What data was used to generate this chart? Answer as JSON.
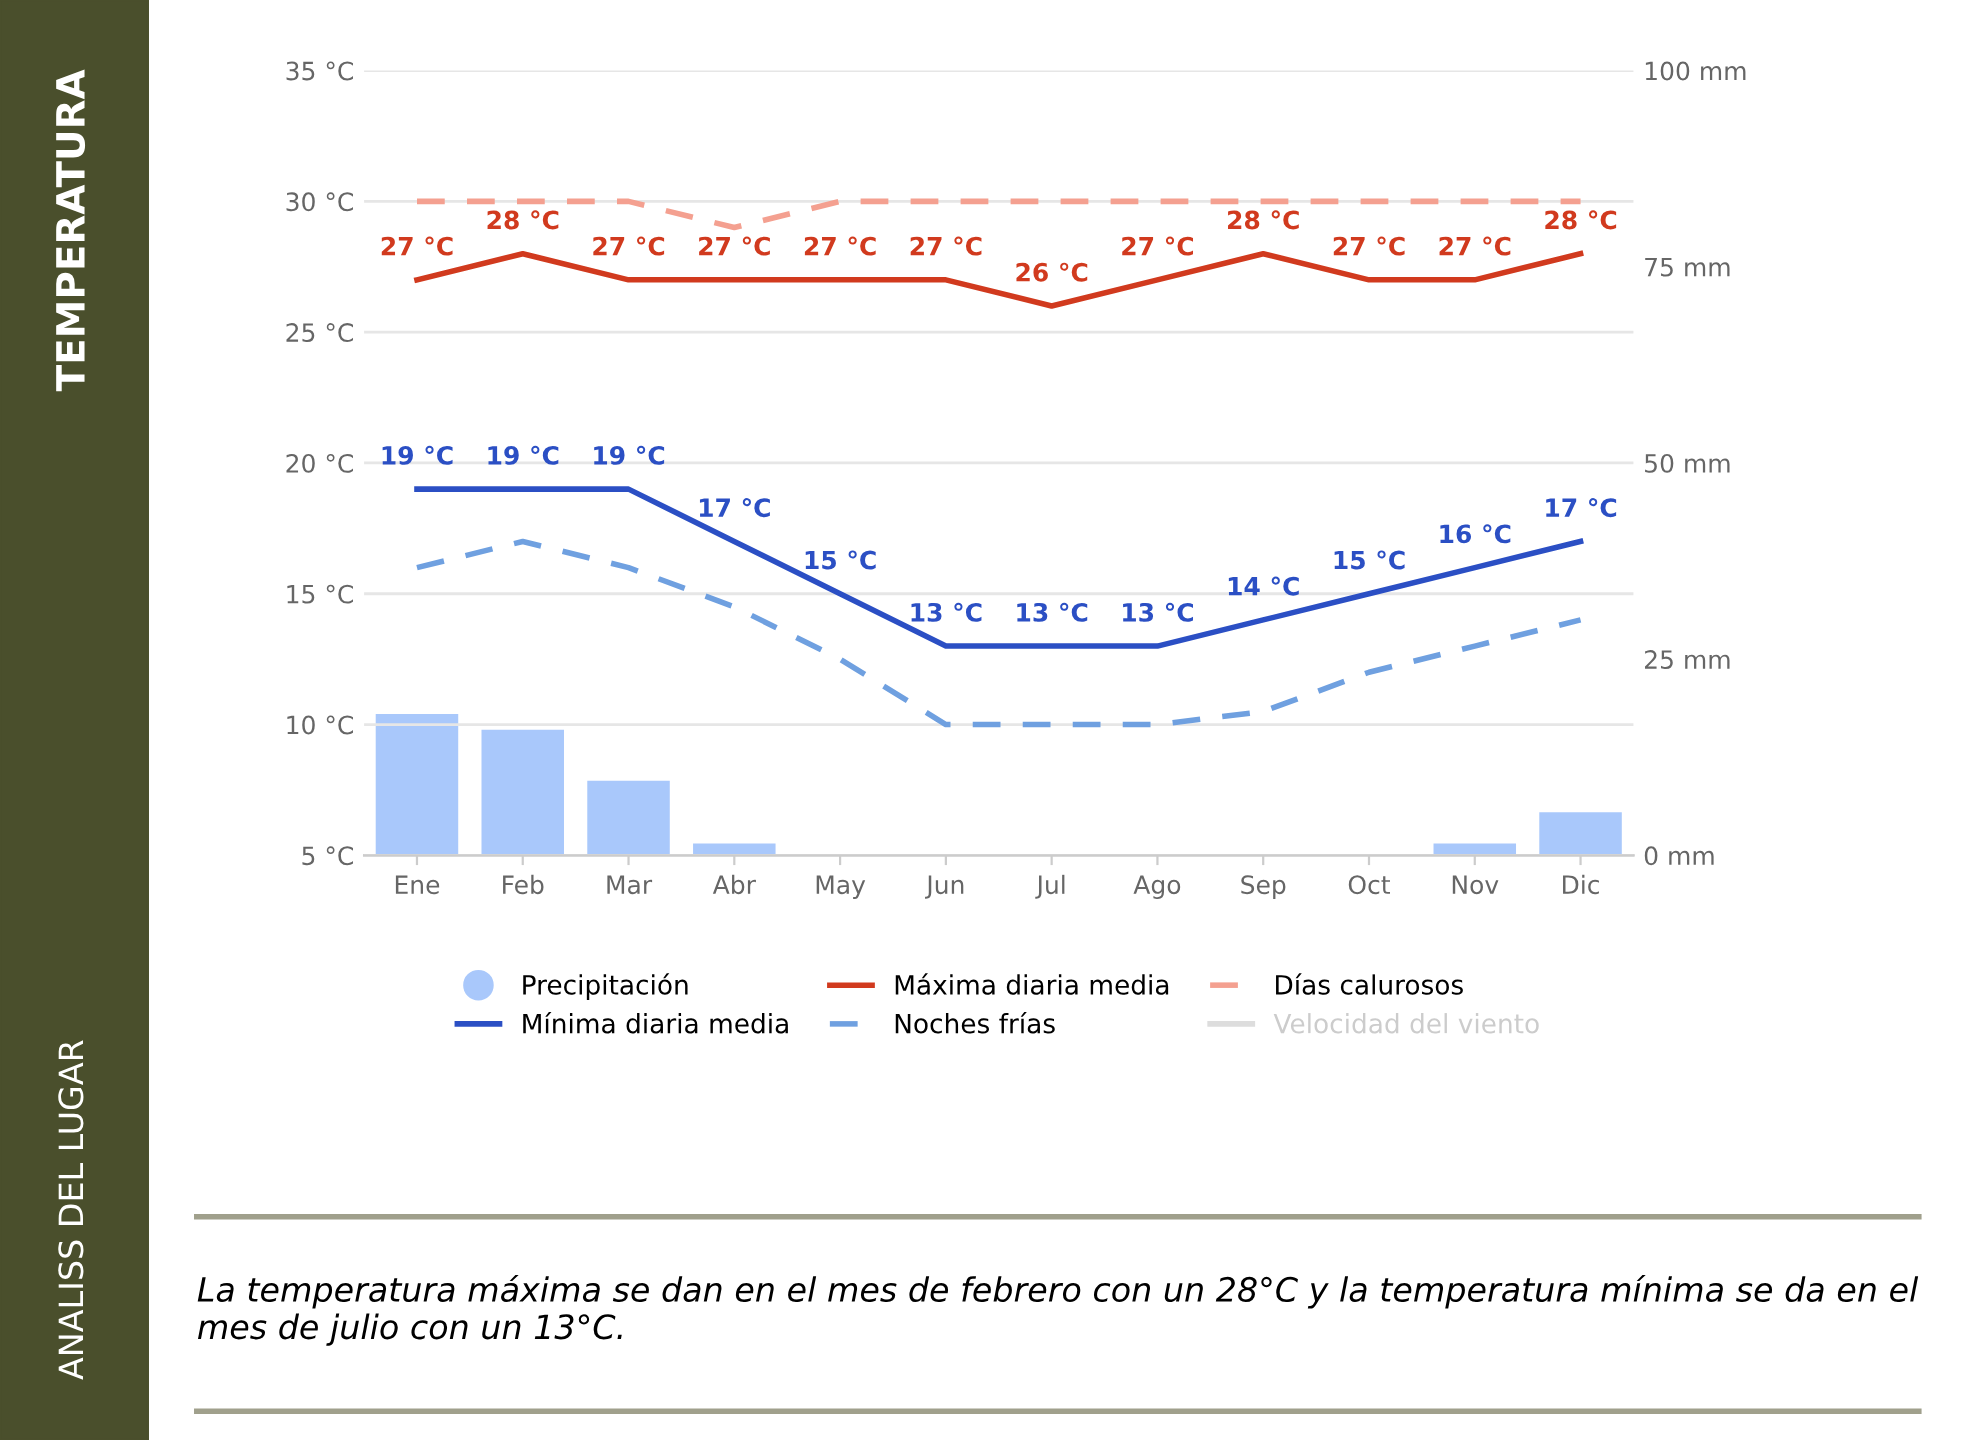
{
  "chart_data": {
    "type": "line",
    "categories": [
      "Ene",
      "Feb",
      "Mar",
      "Abr",
      "May",
      "Jun",
      "Jul",
      "Ago",
      "Sep",
      "Oct",
      "Nov",
      "Dic"
    ],
    "series": [
      {
        "name": "Precipitación",
        "type": "bar",
        "axis": "y2",
        "color": "#a9c8fb",
        "values": [
          18,
          16,
          9.5,
          1.5,
          0,
          0,
          0,
          0,
          0,
          0,
          1.5,
          5.5
        ]
      },
      {
        "name": "Máxima diaria media",
        "color": "#d13a1e",
        "line_style": "solid",
        "values": [
          27,
          28,
          27,
          27,
          27,
          27,
          26,
          27,
          28,
          27,
          27,
          28
        ],
        "value_labels": [
          "27 °C",
          "28 °C",
          "27 °C",
          "27 °C",
          "27 °C",
          "27 °C",
          "26 °C",
          "27 °C",
          "28 °C",
          "27 °C",
          "27 °C",
          "28 °C"
        ]
      },
      {
        "name": "Días calurosos",
        "color": "#f4a090",
        "line_style": "dashed",
        "values": [
          30,
          30,
          30,
          29,
          30,
          30,
          30,
          30,
          30,
          30,
          30,
          30
        ]
      },
      {
        "name": "Mínima diaria media",
        "color": "#2b4fc4",
        "line_style": "solid",
        "values": [
          19,
          19,
          19,
          17,
          15,
          13,
          13,
          13,
          14,
          15,
          16,
          17
        ],
        "value_labels": [
          "19 °C",
          "19 °C",
          "19 °C",
          "17 °C",
          "15 °C",
          "13 °C",
          "13 °C",
          "13 °C",
          "14 °C",
          "15 °C",
          "16 °C",
          "17 °C"
        ]
      },
      {
        "name": "Noches frías",
        "color": "#6fa0e0",
        "line_style": "dashed",
        "values": [
          16,
          17,
          16,
          14.5,
          12.5,
          10,
          10,
          10,
          10.5,
          12,
          13,
          14
        ]
      },
      {
        "name": "Velocidad del viento",
        "color": "#dddddd",
        "line_style": "solid",
        "values": [
          null,
          null,
          null,
          null,
          null,
          null,
          null,
          null,
          null,
          null,
          null,
          null
        ]
      }
    ],
    "ylim": [
      5,
      35
    ],
    "yticks": [
      {
        "value": 5,
        "label": "5 °C"
      },
      {
        "value": 10,
        "label": "10 °C"
      },
      {
        "value": 15,
        "label": "15 °C"
      },
      {
        "value": 20,
        "label": "20 °C"
      },
      {
        "value": 25,
        "label": "25 °C"
      },
      {
        "value": 30,
        "label": "30 °C"
      },
      {
        "value": 35,
        "label": "35 °C"
      }
    ],
    "y2lim": [
      0,
      100
    ],
    "y2ticks": [
      {
        "value": 0,
        "label": "0 mm"
      },
      {
        "value": 25,
        "label": "25 mm"
      },
      {
        "value": 50,
        "label": "50 mm"
      },
      {
        "value": 75,
        "label": "75 mm"
      },
      {
        "value": 100,
        "label": "100 mm"
      }
    ],
    "grid": "y",
    "legend": "bottom",
    "annotations": [
      "TEMPERATURA",
      "ANALISS DEL LUGAR",
      "La temperatura máxima se dan en el mes de febrero con un 28°C y la temperatura mínima se da en el mes de julio con un 13°C."
    ]
  }
}
